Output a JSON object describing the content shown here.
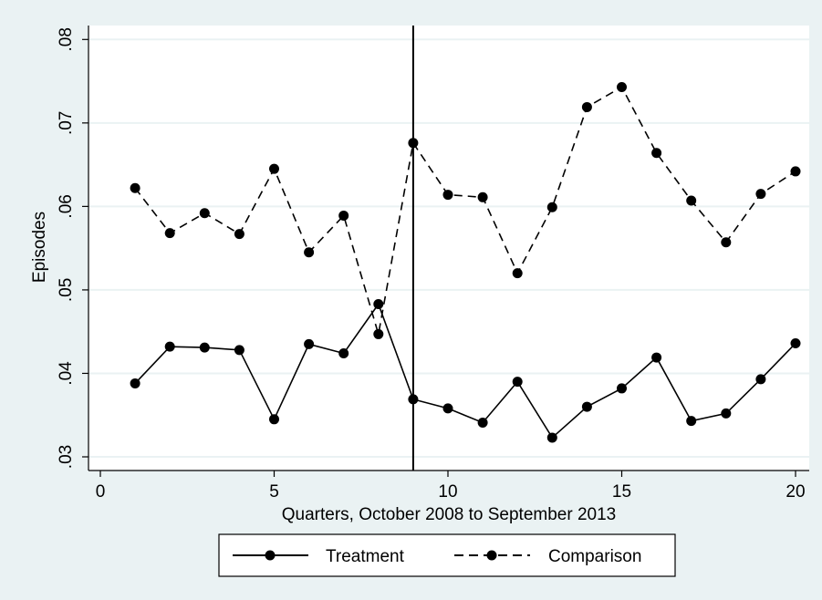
{
  "chart_data": {
    "type": "line",
    "xlabel": "Quarters, October 2008 to September 2013",
    "ylabel": "Episodes",
    "xlim": [
      0,
      20
    ],
    "ylim": [
      0.03,
      0.08
    ],
    "x_ticks": [
      0,
      5,
      10,
      15,
      20
    ],
    "x_tick_labels": [
      "0",
      "5",
      "10",
      "15",
      "20"
    ],
    "y_ticks": [
      0.03,
      0.04,
      0.05,
      0.06,
      0.07,
      0.08
    ],
    "y_tick_labels": [
      ".03",
      ".04",
      ".05",
      ".06",
      ".07",
      ".08"
    ],
    "grid": "horizontal",
    "vertical_reference_line_x": 9,
    "legend_position": "bottom",
    "x": [
      1,
      2,
      3,
      4,
      5,
      6,
      7,
      8,
      9,
      10,
      11,
      12,
      13,
      14,
      15,
      16,
      17,
      18,
      19,
      20
    ],
    "series": [
      {
        "name": "Treatment",
        "line_style": "solid",
        "color": "#000000",
        "values": [
          0.0388,
          0.0432,
          0.0431,
          0.0428,
          0.0345,
          0.0435,
          0.0424,
          0.0483,
          0.0369,
          0.0358,
          0.0341,
          0.039,
          0.0323,
          0.036,
          0.0382,
          0.0419,
          0.0343,
          0.0352,
          0.0393,
          0.0436
        ]
      },
      {
        "name": "Comparison",
        "line_style": "dashed",
        "color": "#000000",
        "values": [
          0.0622,
          0.0568,
          0.0592,
          0.0567,
          0.0645,
          0.0545,
          0.0589,
          0.0447,
          0.0676,
          0.0614,
          0.0611,
          0.052,
          0.0599,
          0.0719,
          0.0743,
          0.0664,
          0.0607,
          0.0557,
          0.0615,
          0.0642
        ]
      }
    ]
  },
  "colors": {
    "background": "#eaf2f3",
    "plot_region": "#ffffff",
    "gridline": "#eaf2f3",
    "line": "#000000"
  }
}
